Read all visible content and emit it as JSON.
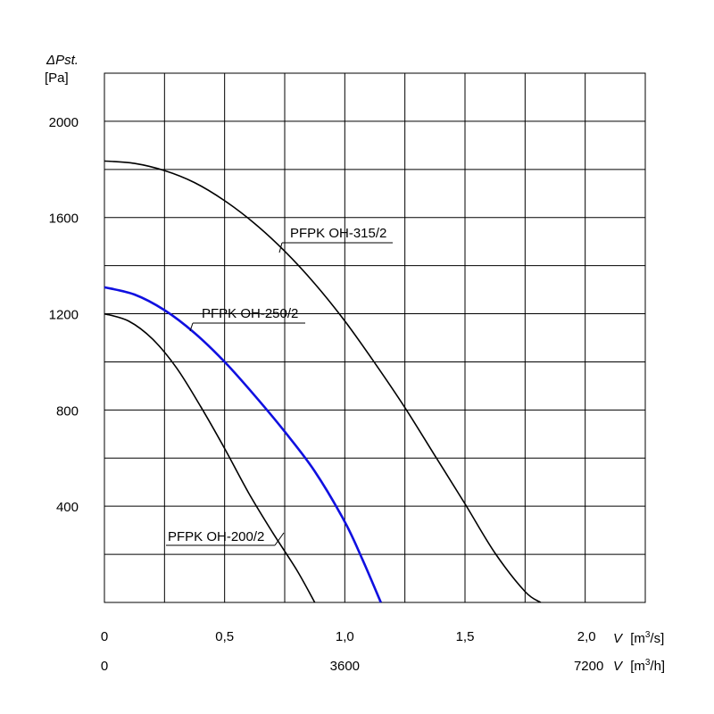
{
  "chart_data": {
    "type": "line",
    "ylabel_symbol": "ΔPst.",
    "ylabel_unit": "[Pa]",
    "xlabel_symbol": "V",
    "xlabel_unit_main_prefix": "[m",
    "xlabel_unit_main_sup": "3",
    "xlabel_unit_main_suffix": "/s]",
    "xlabel_unit_sec_prefix": "[m",
    "xlabel_unit_sec_sup": "3",
    "xlabel_unit_sec_suffix": "/h]",
    "xlim": [
      0,
      2.25
    ],
    "ylim": [
      0,
      2200
    ],
    "x_tick_labels": [
      "0",
      "0,5",
      "1,0",
      "1,5",
      "2,0"
    ],
    "x_tick_values": [
      0,
      0.5,
      1.0,
      1.5,
      2.0
    ],
    "x2_tick_labels": [
      "0",
      "3600",
      "7200"
    ],
    "x2_tick_values": [
      0,
      1.0,
      2.0
    ],
    "y_tick_labels": [
      "400",
      "800",
      "1200",
      "1600",
      "2000"
    ],
    "y_tick_values": [
      400,
      800,
      1200,
      1600,
      2000
    ],
    "grid": true,
    "series": [
      {
        "name": "PFPK OH-315/2",
        "color": "#000000",
        "points": [
          [
            0,
            1835
          ],
          [
            0.125,
            1825
          ],
          [
            0.25,
            1795
          ],
          [
            0.375,
            1745
          ],
          [
            0.5,
            1670
          ],
          [
            0.625,
            1575
          ],
          [
            0.75,
            1460
          ],
          [
            0.875,
            1325
          ],
          [
            1.0,
            1170
          ],
          [
            1.125,
            995
          ],
          [
            1.25,
            810
          ],
          [
            1.375,
            610
          ],
          [
            1.5,
            410
          ],
          [
            1.625,
            205
          ],
          [
            1.75,
            45
          ],
          [
            1.815,
            0
          ]
        ]
      },
      {
        "name": "PFPK OH-250/2",
        "color": "#1010e0",
        "points": [
          [
            0,
            1310
          ],
          [
            0.125,
            1280
          ],
          [
            0.25,
            1215
          ],
          [
            0.375,
            1120
          ],
          [
            0.5,
            1000
          ],
          [
            0.625,
            860
          ],
          [
            0.75,
            710
          ],
          [
            0.875,
            545
          ],
          [
            1.0,
            335
          ],
          [
            1.075,
            175
          ],
          [
            1.15,
            0
          ]
        ]
      },
      {
        "name": "PFPK OH-200/2",
        "color": "#000000",
        "points": [
          [
            0,
            1200
          ],
          [
            0.1,
            1170
          ],
          [
            0.2,
            1095
          ],
          [
            0.3,
            975
          ],
          [
            0.4,
            815
          ],
          [
            0.5,
            640
          ],
          [
            0.6,
            455
          ],
          [
            0.7,
            290
          ],
          [
            0.8,
            135
          ],
          [
            0.875,
            0
          ]
        ]
      }
    ],
    "annotations": [
      {
        "text": "PFPK OH-315/2",
        "series": 0
      },
      {
        "text": "PFPK OH-250/2",
        "series": 1
      },
      {
        "text": "PFPK OH-200/2",
        "series": 2
      }
    ]
  }
}
